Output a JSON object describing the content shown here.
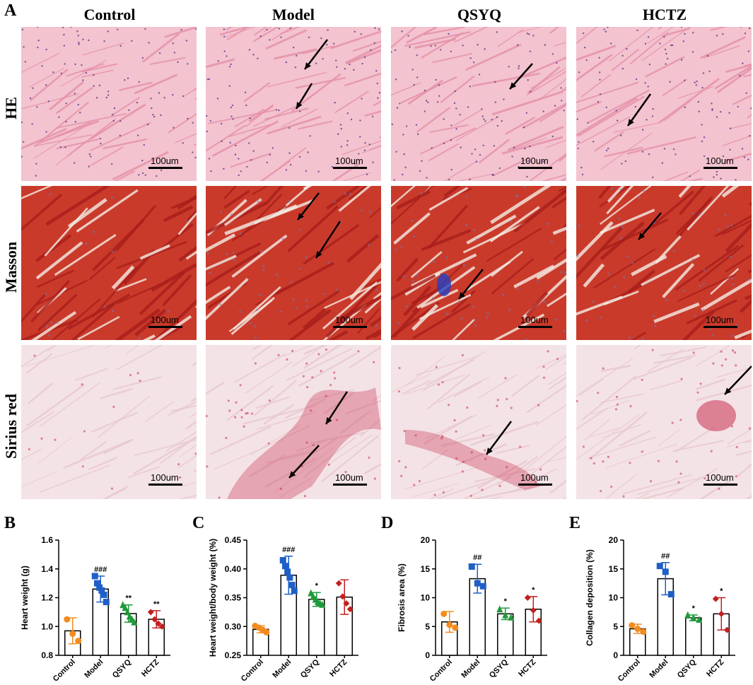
{
  "panel_a": {
    "letter": "A",
    "columns": [
      "Control",
      "Model",
      "QSYQ",
      "HCTZ"
    ],
    "rows": [
      "HE",
      "Masson",
      "Sirius red"
    ],
    "scale_label": "100um",
    "stain_colors": {
      "HE": {
        "bg": "#f3c3cf",
        "fiber": "#e58fa7",
        "nuclei": "#5a3a8a"
      },
      "Masson": {
        "bg": "#c93a2b",
        "fiber": "#a81e1a",
        "collagen": "#6a7ab8"
      },
      "Sirius red": {
        "bg": "#f4e3e6",
        "fiber": "#e8c9d0",
        "collagen": "#c9304f"
      }
    }
  },
  "chart_data": [
    {
      "letter": "B",
      "type": "bar",
      "categories": [
        "Control",
        "Model",
        "QSYQ",
        "HCTZ"
      ],
      "values": [
        0.97,
        1.26,
        1.09,
        1.05
      ],
      "errors": [
        0.09,
        0.09,
        0.06,
        0.06
      ],
      "points": [
        [
          1.05,
          0.95,
          0.9
        ],
        [
          1.35,
          1.3,
          1.27,
          1.25,
          1.22,
          1.17
        ],
        [
          1.15,
          1.13,
          1.1,
          1.07,
          1.05,
          1.03
        ],
        [
          1.1,
          1.05,
          1.02,
          1.0
        ]
      ],
      "colors": [
        "#f28c1e",
        "#1f5fc7",
        "#1e9a3a",
        "#c0201f"
      ],
      "markers": [
        "circle",
        "square",
        "triangle",
        "diamond"
      ],
      "annotations": [
        "",
        "###",
        "**",
        "**"
      ],
      "ylabel": "Heart weight (g)",
      "ylim": [
        0.8,
        1.6
      ],
      "yticks": [
        "0.8",
        "1.0",
        "1.2",
        "1.4",
        "1.6"
      ]
    },
    {
      "letter": "C",
      "type": "bar",
      "categories": [
        "Control",
        "Model",
        "QSYQ",
        "HCTZ"
      ],
      "values": [
        0.295,
        0.389,
        0.347,
        0.351
      ],
      "errors": [
        0.006,
        0.033,
        0.012,
        0.03
      ],
      "points": [
        [
          0.301,
          0.298,
          0.294,
          0.29
        ],
        [
          0.415,
          0.405,
          0.395,
          0.385,
          0.372,
          0.362
        ],
        [
          0.358,
          0.352,
          0.347,
          0.343,
          0.34,
          0.338
        ],
        [
          0.375,
          0.352,
          0.34,
          0.33
        ]
      ],
      "colors": [
        "#f28c1e",
        "#1f5fc7",
        "#1e9a3a",
        "#c0201f"
      ],
      "markers": [
        "circle",
        "square",
        "triangle",
        "diamond"
      ],
      "annotations": [
        "",
        "###",
        "*",
        ""
      ],
      "ylabel": "Heart weight/body weight (%)",
      "ylim": [
        0.25,
        0.45
      ],
      "yticks": [
        "0.25",
        "0.30",
        "0.35",
        "0.40",
        "0.45"
      ]
    },
    {
      "letter": "D",
      "type": "bar",
      "categories": [
        "Control",
        "Model",
        "QSYQ",
        "HCTZ"
      ],
      "values": [
        5.8,
        13.3,
        7.2,
        8.0
      ],
      "errors": [
        1.8,
        2.5,
        1.0,
        2.2
      ],
      "points": [
        [
          7.2,
          5.3,
          4.8
        ],
        [
          15.4,
          12.5,
          12.0
        ],
        [
          8.0,
          7.0,
          6.6
        ],
        [
          10.0,
          7.8,
          6.0
        ]
      ],
      "colors": [
        "#f28c1e",
        "#1f5fc7",
        "#1e9a3a",
        "#c0201f"
      ],
      "markers": [
        "circle",
        "square",
        "triangle",
        "diamond"
      ],
      "annotations": [
        "",
        "##",
        "*",
        "*"
      ],
      "ylabel": "Fibrosis area (%)",
      "ylim": [
        0,
        20
      ],
      "yticks": [
        "0",
        "5",
        "10",
        "15",
        "20"
      ]
    },
    {
      "letter": "E",
      "type": "bar",
      "categories": [
        "Control",
        "Model",
        "QSYQ",
        "HCTZ"
      ],
      "values": [
        4.6,
        13.3,
        6.5,
        7.2
      ],
      "errors": [
        0.8,
        2.8,
        0.5,
        2.8
      ],
      "points": [
        [
          5.2,
          4.6,
          4.1
        ],
        [
          15.5,
          14.5,
          10.6
        ],
        [
          7.0,
          6.5,
          6.2
        ],
        [
          9.8,
          7.2,
          4.4
        ]
      ],
      "colors": [
        "#f28c1e",
        "#1f5fc7",
        "#1e9a3a",
        "#c0201f"
      ],
      "markers": [
        "circle",
        "square",
        "triangle",
        "diamond"
      ],
      "annotations": [
        "",
        "##",
        "*",
        "*"
      ],
      "ylabel": "Collagen deposition (%)",
      "ylim": [
        0,
        20
      ],
      "yticks": [
        "0",
        "5",
        "10",
        "15",
        "20"
      ]
    }
  ]
}
